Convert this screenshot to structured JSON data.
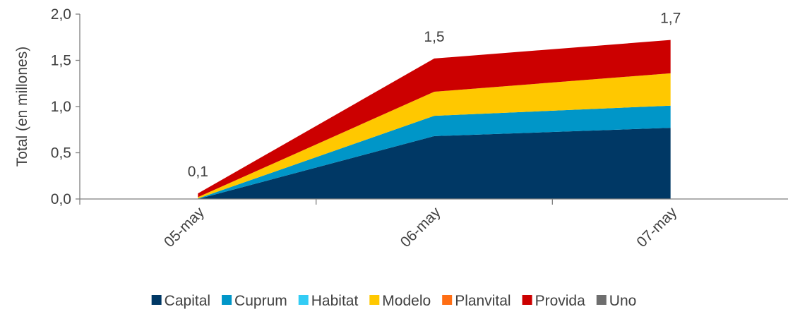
{
  "chart_data": {
    "type": "area",
    "stacked": true,
    "title": "",
    "xlabel": "",
    "ylabel": "Total (en millones)",
    "categories": [
      "05-may",
      "06-may",
      "07-may"
    ],
    "ylim": [
      0,
      2
    ],
    "yticks": [
      "0,0",
      "0,5",
      "1,0",
      "1,5",
      "2,0"
    ],
    "grid": false,
    "legend_position": "bottom",
    "series": [
      {
        "name": "Capital",
        "color": "#003865",
        "values": [
          0.0,
          0.68,
          0.77
        ]
      },
      {
        "name": "Cuprum",
        "color": "#0096C8",
        "values": [
          0.005,
          0.22,
          0.24
        ]
      },
      {
        "name": "Habitat",
        "color": "#33CCF5",
        "values": [
          0.0,
          0.0,
          0.0
        ]
      },
      {
        "name": "Modelo",
        "color": "#FFC800",
        "values": [
          0.015,
          0.26,
          0.35
        ]
      },
      {
        "name": "Planvital",
        "color": "#FF6E14",
        "values": [
          0.0,
          0.0,
          0.0
        ]
      },
      {
        "name": "Provida",
        "color": "#CC0000",
        "values": [
          0.04,
          0.36,
          0.36
        ]
      },
      {
        "name": "Uno",
        "color": "#6E6E6E",
        "values": [
          0.0,
          0.0,
          0.0
        ]
      }
    ],
    "total_labels": [
      "0,1",
      "1,5",
      "1,7"
    ]
  }
}
